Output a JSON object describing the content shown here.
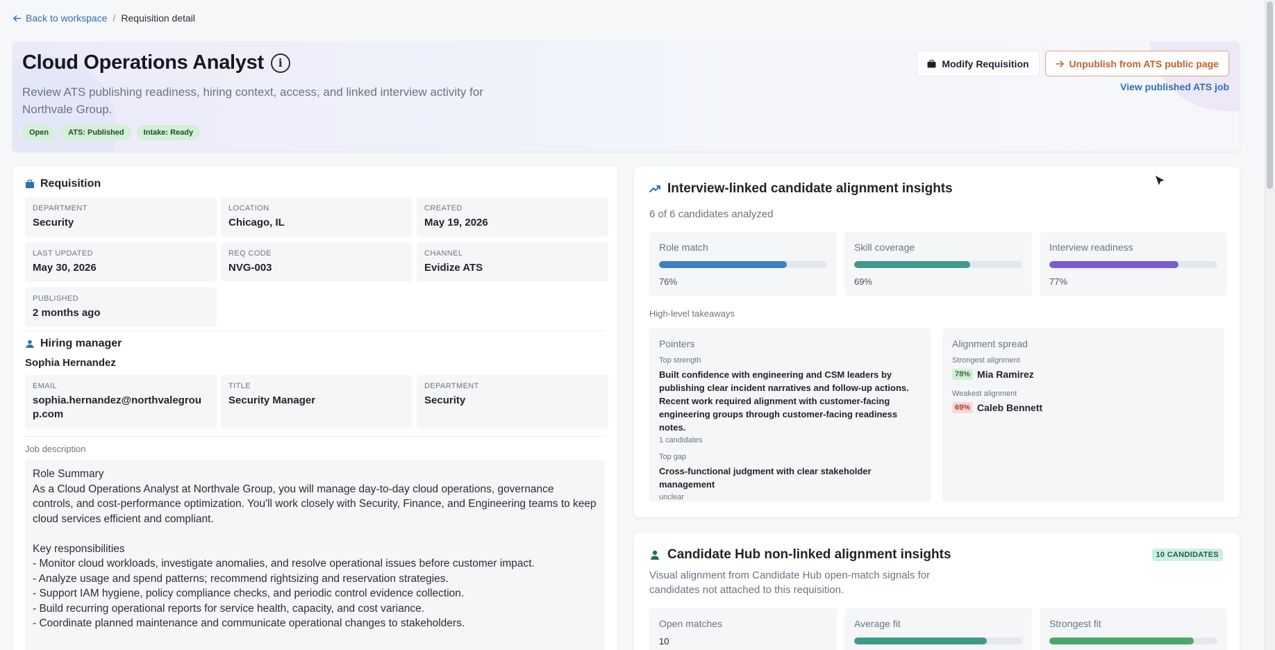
{
  "breadcrumb": {
    "back": "Back to workspace",
    "sep": "/",
    "current": "Requisition detail"
  },
  "header": {
    "title": "Cloud Operations Analyst",
    "subtitle": "Review ATS publishing readiness, hiring context, access, and linked interview activity for Northvale Group.",
    "badges": [
      "Open",
      "ATS: Published",
      "Intake: Ready"
    ],
    "modify_label": "Modify Requisition",
    "unpublish_label": "Unpublish from ATS public page",
    "view_link": "View published ATS job"
  },
  "requisition": {
    "title": "Requisition",
    "fields": [
      {
        "label": "Department",
        "value": "Security"
      },
      {
        "label": "Location",
        "value": "Chicago, IL"
      },
      {
        "label": "Created",
        "value": "May 19, 2026"
      },
      {
        "label": "Last updated",
        "value": "May 30, 2026"
      },
      {
        "label": "Req code",
        "value": "NVG-003"
      },
      {
        "label": "Channel",
        "value": "Evidize ATS"
      },
      {
        "label": "Published",
        "value": "2 months ago"
      }
    ]
  },
  "hiring_manager": {
    "title": "Hiring manager",
    "name": "Sophia Hernandez",
    "fields": [
      {
        "label": "Email",
        "value": "sophia.hernandez@northvalegroup.com"
      },
      {
        "label": "Title",
        "value": "Security Manager"
      },
      {
        "label": "Department",
        "value": "Security"
      }
    ]
  },
  "job_description": {
    "label": "Job description",
    "text": "Role Summary\nAs a Cloud Operations Analyst at Northvale Group, you will manage day-to-day cloud operations, governance controls, and cost-performance optimization. You'll work closely with Security, Finance, and Engineering teams to keep cloud services efficient and compliant.\n\nKey responsibilities\n- Monitor cloud workloads, investigate anomalies, and resolve operational issues before customer impact.\n- Analyze usage and spend patterns; recommend rightsizing and reservation strategies.\n- Support IAM hygiene, policy compliance checks, and periodic control evidence collection.\n- Build recurring operational reports for service health, capacity, and cost variance.\n- Coordinate planned maintenance and communicate operational changes to stakeholders."
  },
  "insights": {
    "title": "Interview-linked candidate alignment insights",
    "analyzed": "6 of 6 candidates analyzed",
    "metrics": [
      {
        "label": "Role match",
        "value": 76,
        "display": "76%",
        "color": "#3f7fc4"
      },
      {
        "label": "Skill coverage",
        "value": 69,
        "display": "69%",
        "color": "#3f9a8c"
      },
      {
        "label": "Interview readiness",
        "value": 77,
        "display": "77%",
        "color": "#7a5bd1"
      }
    ],
    "takeaways_label": "High-level takeaways",
    "pointers": {
      "title": "Pointers",
      "strength_label": "Top strength",
      "strength_text": "Built confidence with engineering and CSM leaders by publishing clear incident narratives and follow-up actions. Recent work required alignment with customer-facing engineering groups through customer-facing readiness notes.",
      "strength_count": "1 candidates",
      "gap_label": "Top gap",
      "gap_text": "Cross-functional judgment with clear stakeholder management",
      "gap_note": "unclear"
    },
    "spread": {
      "title": "Alignment spread",
      "strongest_label": "Strongest alignment",
      "strongest_pct": "78%",
      "strongest_name": "Mia Ramirez",
      "weakest_label": "Weakest alignment",
      "weakest_pct": "69%",
      "weakest_name": "Caleb Bennett"
    }
  },
  "hub": {
    "title": "Candidate Hub non-linked alignment insights",
    "badge": "10 CANDIDATES",
    "subtitle": "Visual alignment from Candidate Hub open-match signals for candidates not attached to this requisition.",
    "metrics": [
      {
        "label": "Open matches",
        "display": "10"
      },
      {
        "label": "Average fit",
        "value": 79,
        "color": "#3f9a8c"
      },
      {
        "label": "Strongest fit",
        "value": 86,
        "color": "#4aa86a"
      }
    ]
  }
}
